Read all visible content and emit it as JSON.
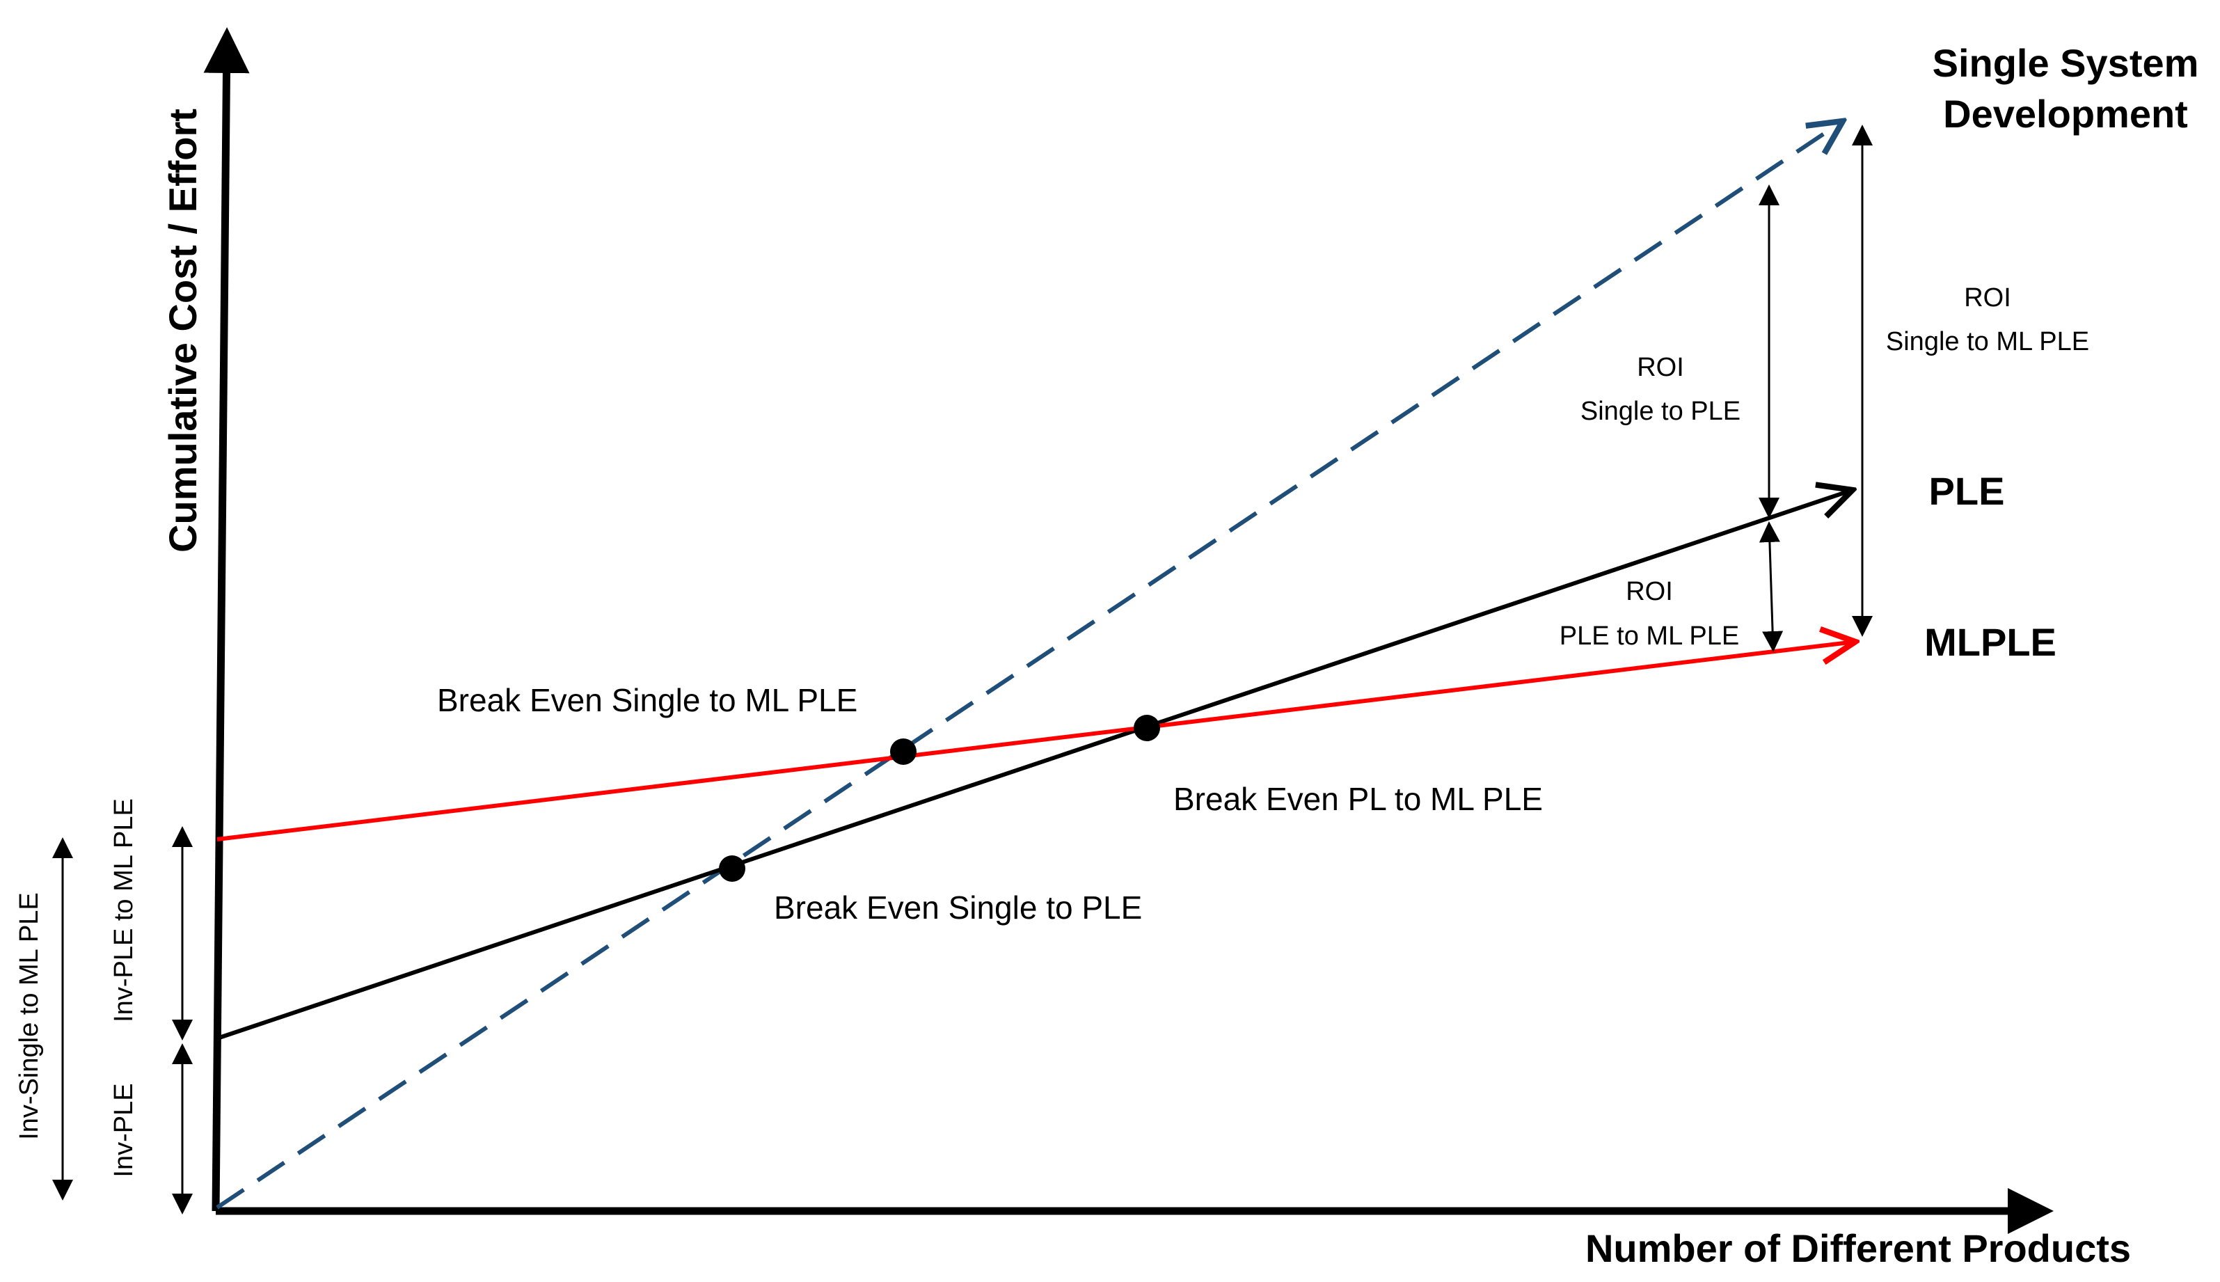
{
  "axes": {
    "y_label": "Cumulative Cost / Effort",
    "x_label": "Number of Different Products"
  },
  "series_labels": {
    "single_line1": "Single System",
    "single_line2": "Development",
    "ple": "PLE",
    "mlple": "MLPLE"
  },
  "roi": {
    "single_to_ple": {
      "title": "ROI",
      "desc": "Single to PLE"
    },
    "single_to_mlple": {
      "title": "ROI",
      "desc": "Single to ML PLE"
    },
    "ple_to_mlple": {
      "title": "ROI",
      "desc": "PLE to ML PLE"
    }
  },
  "break_even": {
    "single_to_mlple": "Break Even Single to ML PLE",
    "pl_to_mlple": "Break Even PL to ML PLE",
    "single_to_ple": "Break Even Single to PLE"
  },
  "investments": {
    "inv_single_to_mlple": "Inv-Single to ML PLE",
    "inv_ple_to_mlple": "Inv-PLE to ML PLE",
    "inv_ple": "Inv-PLE"
  },
  "colors": {
    "single": "#1f4e79",
    "ple": "#000000",
    "mlple": "#ff0000"
  }
}
